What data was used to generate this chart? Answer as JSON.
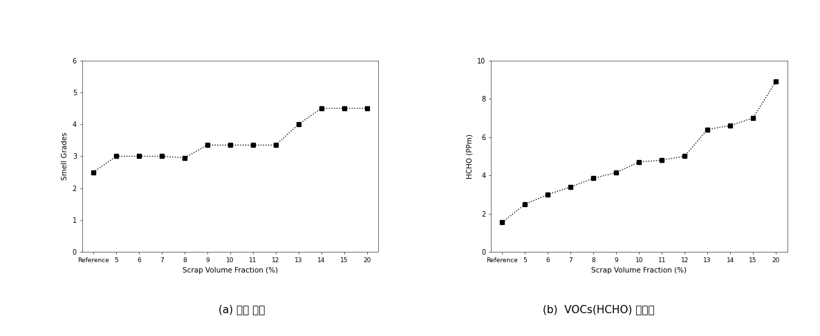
{
  "left_chart": {
    "x_labels": [
      "Reference",
      "5",
      "6",
      "7",
      "8",
      "9",
      "10",
      "11",
      "12",
      "13",
      "14",
      "15",
      "20"
    ],
    "y_values": [
      2.5,
      3.0,
      3.0,
      3.0,
      2.95,
      3.35,
      3.35,
      3.35,
      3.35,
      4.0,
      4.5,
      4.5,
      4.5
    ],
    "ylabel": "Smell Grades",
    "xlabel": "Scrap Volume Fraction (%)",
    "ylim": [
      0,
      6
    ],
    "yticks": [
      0,
      1,
      2,
      3,
      4,
      5,
      6
    ],
    "caption": "(a) 냄새 특성"
  },
  "right_chart": {
    "x_labels": [
      "Reference",
      "5",
      "6",
      "7",
      "8",
      "9",
      "10",
      "11",
      "12",
      "13",
      "14",
      "15",
      "20"
    ],
    "y_values": [
      1.55,
      2.5,
      3.0,
      3.4,
      3.85,
      4.15,
      4.7,
      4.8,
      5.0,
      6.4,
      6.6,
      7.0,
      8.9
    ],
    "ylabel": "HCHO (PPm)",
    "xlabel": "Scrap Volume Fraction (%)",
    "ylim": [
      0,
      10
    ],
    "yticks": [
      0,
      2,
      4,
      6,
      8,
      10
    ],
    "caption": "(b)  VOCs(HCHO) 방출량"
  },
  "line_color": "#000000",
  "marker": "s",
  "markersize": 4,
  "linestyle": ":",
  "background_color": "#ffffff",
  "axes_background": "#ffffff"
}
